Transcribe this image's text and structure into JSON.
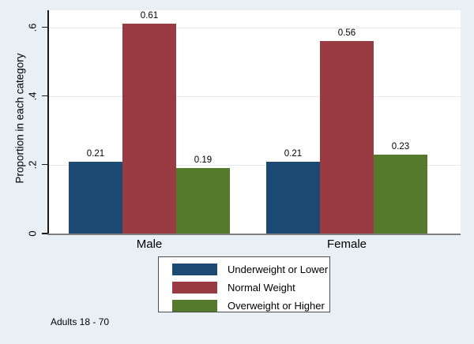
{
  "chart_data": {
    "type": "bar",
    "title": "",
    "categories": [
      "Male",
      "Female"
    ],
    "series": [
      {
        "name": "Underweight or Lower",
        "color": "#1c4a73",
        "values": [
          0.21,
          0.21
        ],
        "value_labels": [
          "0.21",
          "0.21"
        ]
      },
      {
        "name": "Normal Weight",
        "color": "#9a3a42",
        "values": [
          0.61,
          0.56
        ],
        "value_labels": [
          "0.61",
          "0.56"
        ]
      },
      {
        "name": "Overweight or Higher",
        "color": "#567a2c",
        "values": [
          0.19,
          0.23
        ],
        "value_labels": [
          "0.19",
          "0.23"
        ]
      }
    ],
    "xlabel": "",
    "ylabel": "Proportion in each category",
    "ylim": [
      0,
      0.65
    ],
    "yticks": [
      {
        "value": 0.0,
        "label": "0"
      },
      {
        "value": 0.2,
        "label": ".2"
      },
      {
        "value": 0.4,
        "label": ".4"
      },
      {
        "value": 0.6,
        "label": ".6"
      }
    ],
    "grid": true,
    "legend_position": "bottom-center",
    "note": "Adults 18 - 70"
  },
  "colors": {
    "background": "#e9f0f5",
    "plot_background": "#ffffff",
    "gridline": "#e6e9ec",
    "y_axis_line": "#1a1a1a",
    "x_axis_line": "#7f7f7f",
    "legend_border": "#4d4d4d",
    "text": "#000000"
  }
}
